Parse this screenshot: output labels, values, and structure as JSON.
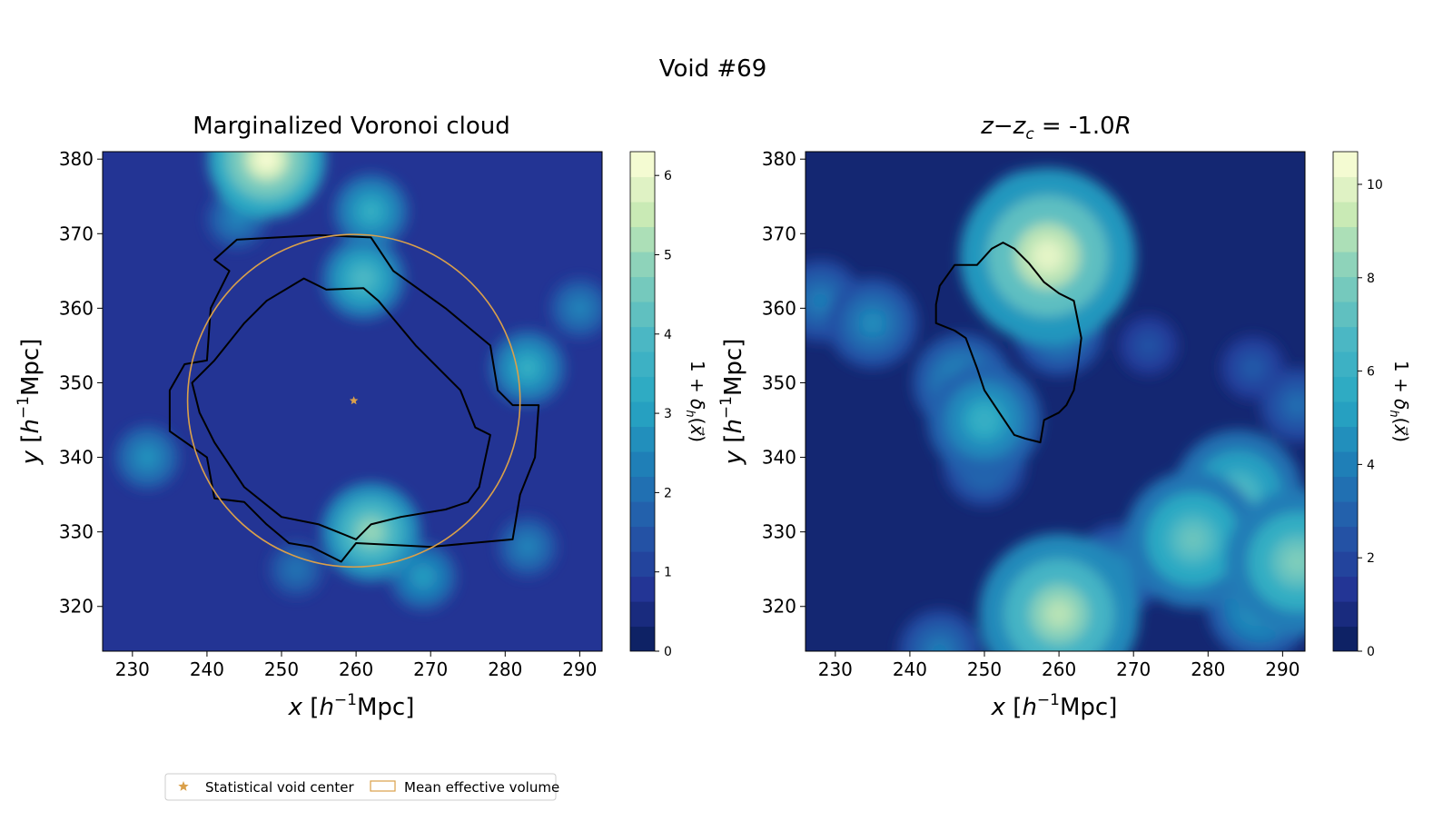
{
  "figure": {
    "suptitle": "Void #69"
  },
  "chart_data": [
    {
      "type": "heatmap",
      "title": "Marginalized Voronoi cloud",
      "xlabel": "x [h⁻¹Mpc]",
      "ylabel": "y [h⁻¹Mpc]",
      "xlim": [
        226,
        293
      ],
      "ylim": [
        314,
        381
      ],
      "xticks": [
        230,
        240,
        250,
        260,
        270,
        280,
        290
      ],
      "yticks": [
        320,
        330,
        340,
        350,
        360,
        370,
        380
      ],
      "colorbar": {
        "label": "1 + δ_h(x⃗)",
        "range": [
          0,
          6.3
        ],
        "ticks": [
          0,
          1,
          2,
          3,
          4,
          5,
          6
        ],
        "colormap": "YlGnBu_r"
      },
      "density_peaks": [
        {
          "x": 248,
          "y": 380,
          "value": 6.2
        },
        {
          "x": 262,
          "y": 373,
          "value": 3.5
        },
        {
          "x": 261,
          "y": 364,
          "value": 4.0
        },
        {
          "x": 262,
          "y": 330,
          "value": 5.0
        },
        {
          "x": 269,
          "y": 324,
          "value": 3.0
        },
        {
          "x": 283,
          "y": 352,
          "value": 3.5
        },
        {
          "x": 290,
          "y": 360,
          "value": 2.5
        },
        {
          "x": 232,
          "y": 340,
          "value": 2.8
        },
        {
          "x": 244,
          "y": 372,
          "value": 2.5
        },
        {
          "x": 283,
          "y": 328,
          "value": 2.5
        },
        {
          "x": 252,
          "y": 325,
          "value": 2.2
        }
      ],
      "void_contours": [
        {
          "name": "outer boundary",
          "color": "#000000",
          "points": [
            [
              244,
              369.2
            ],
            [
              255,
              369.8
            ],
            [
              262,
              369.5
            ],
            [
              265,
              365
            ],
            [
              272,
              360
            ],
            [
              278,
              355
            ],
            [
              279,
              349
            ],
            [
              281,
              347
            ],
            [
              284.5,
              347
            ],
            [
              284,
              340
            ],
            [
              282,
              335
            ],
            [
              281,
              329
            ],
            [
              270,
              328
            ],
            [
              260,
              328.5
            ],
            [
              258,
              326
            ],
            [
              254,
              328
            ],
            [
              251,
              328.5
            ],
            [
              248,
              331
            ],
            [
              245,
              334
            ],
            [
              241,
              334.5
            ],
            [
              240,
              340
            ],
            [
              235,
              343.5
            ],
            [
              235,
              349
            ],
            [
              237,
              352.5
            ],
            [
              240,
              353
            ],
            [
              240.5,
              360
            ],
            [
              243,
              365
            ],
            [
              241,
              366.5
            ]
          ]
        },
        {
          "name": "inner boundary",
          "color": "#000000",
          "points": [
            [
              253,
              364
            ],
            [
              256,
              362.5
            ],
            [
              261,
              362.7
            ],
            [
              263,
              361
            ],
            [
              268,
              355
            ],
            [
              274,
              349
            ],
            [
              276,
              344
            ],
            [
              278,
              343
            ],
            [
              276.5,
              336
            ],
            [
              275,
              334
            ],
            [
              272,
              333
            ],
            [
              266,
              332
            ],
            [
              262,
              331
            ],
            [
              260,
              329
            ],
            [
              255,
              331
            ],
            [
              250,
              332
            ],
            [
              245,
              336
            ],
            [
              243,
              339
            ],
            [
              241,
              342
            ],
            [
              239,
              346
            ],
            [
              238,
              350
            ],
            [
              241,
              353
            ],
            [
              245,
              358
            ],
            [
              248,
              361
            ]
          ]
        }
      ],
      "effective_volume": {
        "center": [
          259.7,
          347.6
        ],
        "radius": 22.3,
        "color": "#daa04a"
      },
      "void_center": {
        "x": 259.7,
        "y": 347.6,
        "color": "#daa04a"
      }
    },
    {
      "type": "heatmap",
      "title": "z − z_c = -1.0R",
      "title_parts": {
        "z": "z",
        "minus": "−",
        "zc": "z",
        "c": "c",
        "eq": " = -1.0",
        "R": "R"
      },
      "xlabel": "x [h⁻¹Mpc]",
      "ylabel": "y [h⁻¹Mpc]",
      "xlim": [
        226,
        293
      ],
      "ylim": [
        314,
        381
      ],
      "xticks": [
        230,
        240,
        250,
        260,
        270,
        280,
        290
      ],
      "yticks": [
        320,
        330,
        340,
        350,
        360,
        370,
        380
      ],
      "colorbar": {
        "label": "1 + δ_h(x⃗)",
        "range": [
          0,
          10.7
        ],
        "ticks": [
          0,
          2,
          4,
          6,
          8,
          10
        ],
        "colormap": "YlGnBu_r"
      },
      "density_peaks": [
        {
          "x": 258.5,
          "y": 367,
          "value": 10.0
        },
        {
          "x": 256,
          "y": 372,
          "value": 5.0
        },
        {
          "x": 260,
          "y": 357,
          "value": 4.5
        },
        {
          "x": 250,
          "y": 345,
          "value": 6.0
        },
        {
          "x": 247,
          "y": 350,
          "value": 5.0
        },
        {
          "x": 250,
          "y": 339,
          "value": 4.0
        },
        {
          "x": 235,
          "y": 358,
          "value": 4.5
        },
        {
          "x": 228,
          "y": 361,
          "value": 4.0
        },
        {
          "x": 260,
          "y": 319,
          "value": 9.0
        },
        {
          "x": 278,
          "y": 329,
          "value": 7.5
        },
        {
          "x": 284,
          "y": 335,
          "value": 7.0
        },
        {
          "x": 292,
          "y": 326,
          "value": 8.0
        },
        {
          "x": 287,
          "y": 320,
          "value": 5.5
        },
        {
          "x": 268,
          "y": 325,
          "value": 4.5
        },
        {
          "x": 244,
          "y": 314,
          "value": 4.0
        },
        {
          "x": 286,
          "y": 352,
          "value": 2.8
        },
        {
          "x": 292,
          "y": 347,
          "value": 3.5
        },
        {
          "x": 265,
          "y": 369,
          "value": 2.5
        },
        {
          "x": 272,
          "y": 355,
          "value": 2.5
        }
      ],
      "void_contours": [
        {
          "name": "boundary",
          "color": "#000000",
          "points": [
            [
              252.5,
              368.8
            ],
            [
              254,
              368
            ],
            [
              256,
              366
            ],
            [
              258,
              363.5
            ],
            [
              260,
              362
            ],
            [
              262,
              361
            ],
            [
              263,
              356
            ],
            [
              262.5,
              352
            ],
            [
              262,
              349
            ],
            [
              261,
              347
            ],
            [
              260,
              346
            ],
            [
              258,
              345
            ],
            [
              257.5,
              342
            ],
            [
              255.5,
              342.5
            ],
            [
              254,
              343
            ],
            [
              252,
              346
            ],
            [
              250,
              349
            ],
            [
              249,
              352
            ],
            [
              247.5,
              356
            ],
            [
              246,
              357
            ],
            [
              243.5,
              358
            ],
            [
              243.5,
              360.5
            ],
            [
              244,
              363
            ],
            [
              246,
              365.8
            ],
            [
              249,
              365.8
            ],
            [
              251,
              368
            ]
          ]
        }
      ]
    }
  ],
  "legend": {
    "items": [
      {
        "label": "Statistical void center",
        "color": "#daa04a",
        "marker": "star-icon"
      },
      {
        "label": "Mean effective volume",
        "color": "#daa04a",
        "marker": "rectangle-icon"
      }
    ]
  }
}
